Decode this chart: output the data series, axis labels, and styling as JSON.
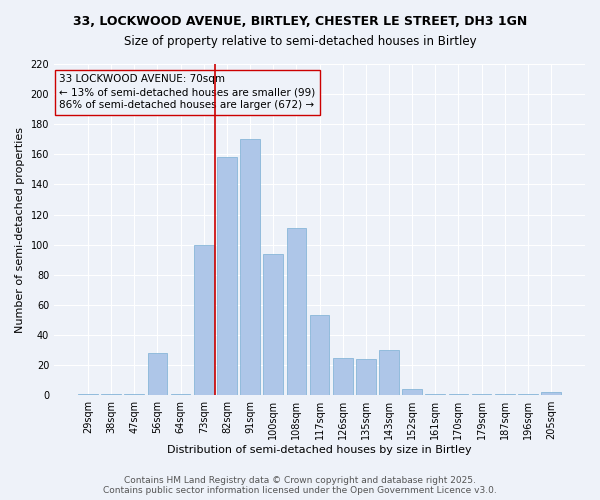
{
  "title": "33, LOCKWOOD AVENUE, BIRTLEY, CHESTER LE STREET, DH3 1GN",
  "subtitle": "Size of property relative to semi-detached houses in Birtley",
  "xlabel": "Distribution of semi-detached houses by size in Birtley",
  "ylabel": "Number of semi-detached properties",
  "categories": [
    "29sqm",
    "38sqm",
    "47sqm",
    "56sqm",
    "64sqm",
    "73sqm",
    "82sqm",
    "91sqm",
    "100sqm",
    "108sqm",
    "117sqm",
    "126sqm",
    "135sqm",
    "143sqm",
    "152sqm",
    "161sqm",
    "170sqm",
    "179sqm",
    "187sqm",
    "196sqm",
    "205sqm"
  ],
  "values": [
    1,
    1,
    1,
    28,
    1,
    100,
    158,
    170,
    94,
    111,
    53,
    25,
    24,
    30,
    4,
    1,
    1,
    1,
    1,
    1,
    2
  ],
  "bar_color": "#aec6e8",
  "bar_edgecolor": "#7aafd4",
  "property_bin_index": 5,
  "annotation_line1": "33 LOCKWOOD AVENUE: 70sqm",
  "annotation_line2": "← 13% of semi-detached houses are smaller (99)",
  "annotation_line3": "86% of semi-detached houses are larger (672) →",
  "vline_color": "#cc0000",
  "box_edgecolor": "#cc0000",
  "ylim": [
    0,
    220
  ],
  "yticks": [
    0,
    20,
    40,
    60,
    80,
    100,
    120,
    140,
    160,
    180,
    200,
    220
  ],
  "background_color": "#eef2f9",
  "grid_color": "#ffffff",
  "footer_text": "Contains HM Land Registry data © Crown copyright and database right 2025.\nContains public sector information licensed under the Open Government Licence v3.0.",
  "title_fontsize": 9,
  "subtitle_fontsize": 8.5,
  "axis_label_fontsize": 8,
  "tick_fontsize": 7,
  "annotation_fontsize": 7.5,
  "footer_fontsize": 6.5
}
